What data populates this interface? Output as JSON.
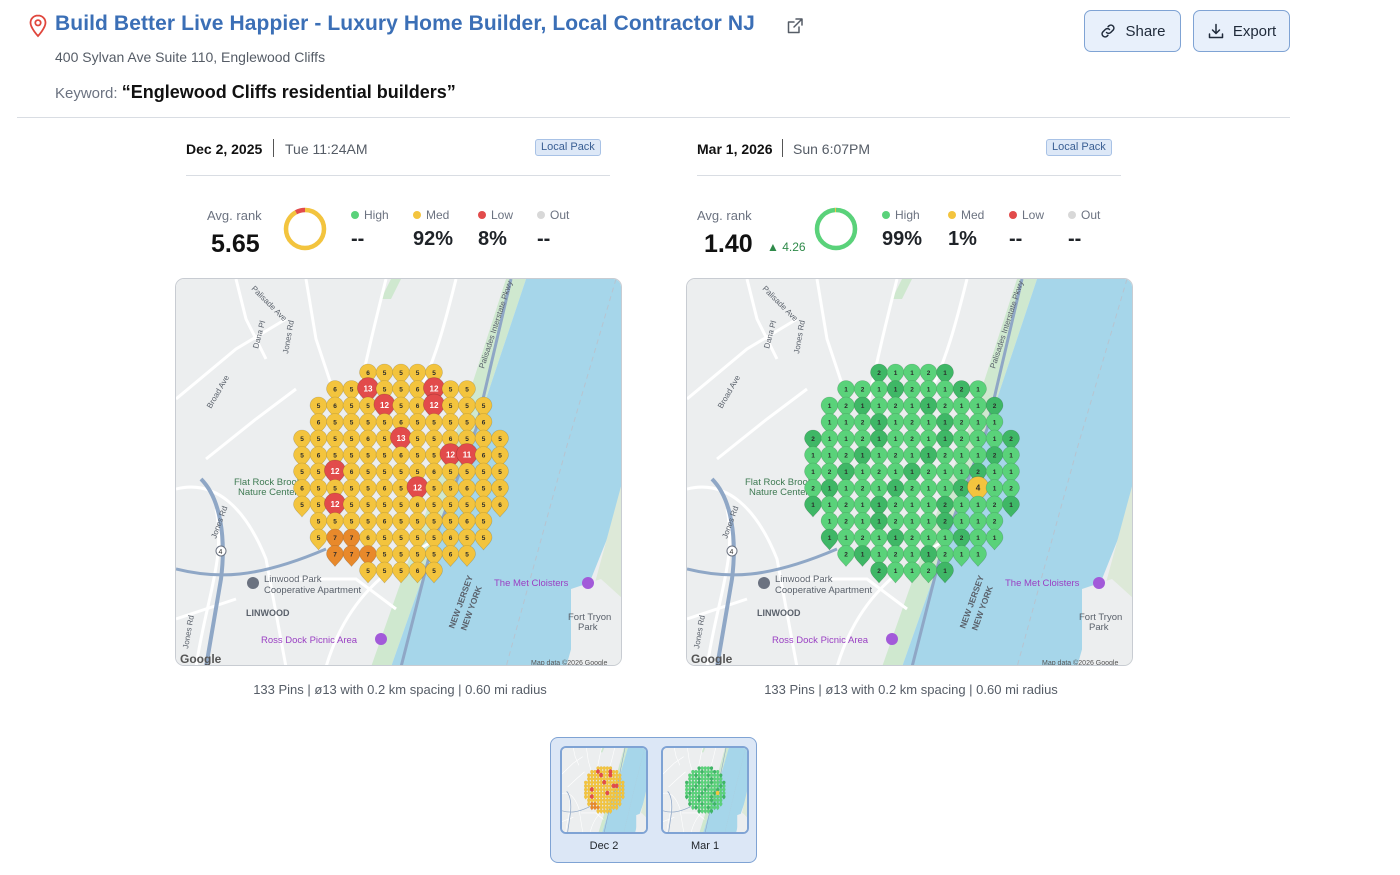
{
  "header": {
    "title": "Build Better Live Happier - Luxury Home Builder, Local Contractor NJ",
    "address": "400 Sylvan Ave Suite 110, Englewood Cliffs",
    "keyword_label": "Keyword:",
    "keyword_value": "“Englewood Cliffs residential builders”"
  },
  "buttons": {
    "share": "Share",
    "export": "Export"
  },
  "colors": {
    "high": "#5ad27a",
    "med": "#f3c43e",
    "low": "#e24b4b",
    "out": "#d8d8d8",
    "water": "#a6d6ea",
    "land": "#eceeef",
    "accent": "#3b6fb6"
  },
  "scans": [
    {
      "date": "Dec 2, 2025",
      "time": "Tue 11:24AM",
      "badge": "Local Pack",
      "avg_label": "Avg. rank",
      "avg_value": "5.65",
      "delta": "",
      "stats": [
        {
          "label": "High",
          "value": "--"
        },
        {
          "label": "Med",
          "value": "92%"
        },
        {
          "label": "Low",
          "value": "8%"
        },
        {
          "label": "Out",
          "value": "--"
        }
      ],
      "caption": "133 Pins | ø13 with 0.2 km spacing | 0.60 mi radius",
      "high_pct": 0,
      "med_pct": 92,
      "low_pct": 8
    },
    {
      "date": "Mar 1, 2026",
      "time": "Sun 6:07PM",
      "badge": "Local Pack",
      "avg_label": "Avg. rank",
      "avg_value": "1.40",
      "delta": "▲ 4.26",
      "stats": [
        {
          "label": "High",
          "value": "99%"
        },
        {
          "label": "Med",
          "value": "1%"
        },
        {
          "label": "Low",
          "value": "--"
        },
        {
          "label": "Out",
          "value": "--"
        }
      ],
      "caption": "133 Pins | ø13 with 0.2 km spacing | 0.60 mi radius",
      "high_pct": 99,
      "med_pct": 1,
      "low_pct": 0
    }
  ],
  "map_labels": {
    "google": "Google",
    "map_data": "Map data ©2026 Google",
    "flat_rock": "Flat Rock Brook",
    "nature_center": "Nature Center",
    "linwood_park": "Linwood Park",
    "coop": "Cooperative Apartment",
    "linwood": "LINWOOD",
    "ross_dock": "Ross Dock Picnic Area",
    "met_cloisters": "The Met Cloisters",
    "fort_tryon": "Fort Tryon",
    "park": "Park",
    "new_jersey": "NEW JERSEY",
    "new_york": "NEW YORK",
    "broad_ave": "Broad Ave",
    "dana_pl": "Dana Pl",
    "jones_rd": "Jones Rd",
    "palisade_ave": "Palisade Ave",
    "palisades_pkwy": "Palisades Interstate Pkwy",
    "route4": "4"
  },
  "thumbnails": [
    {
      "label": "Dec 2"
    },
    {
      "label": "Mar 1"
    }
  ]
}
